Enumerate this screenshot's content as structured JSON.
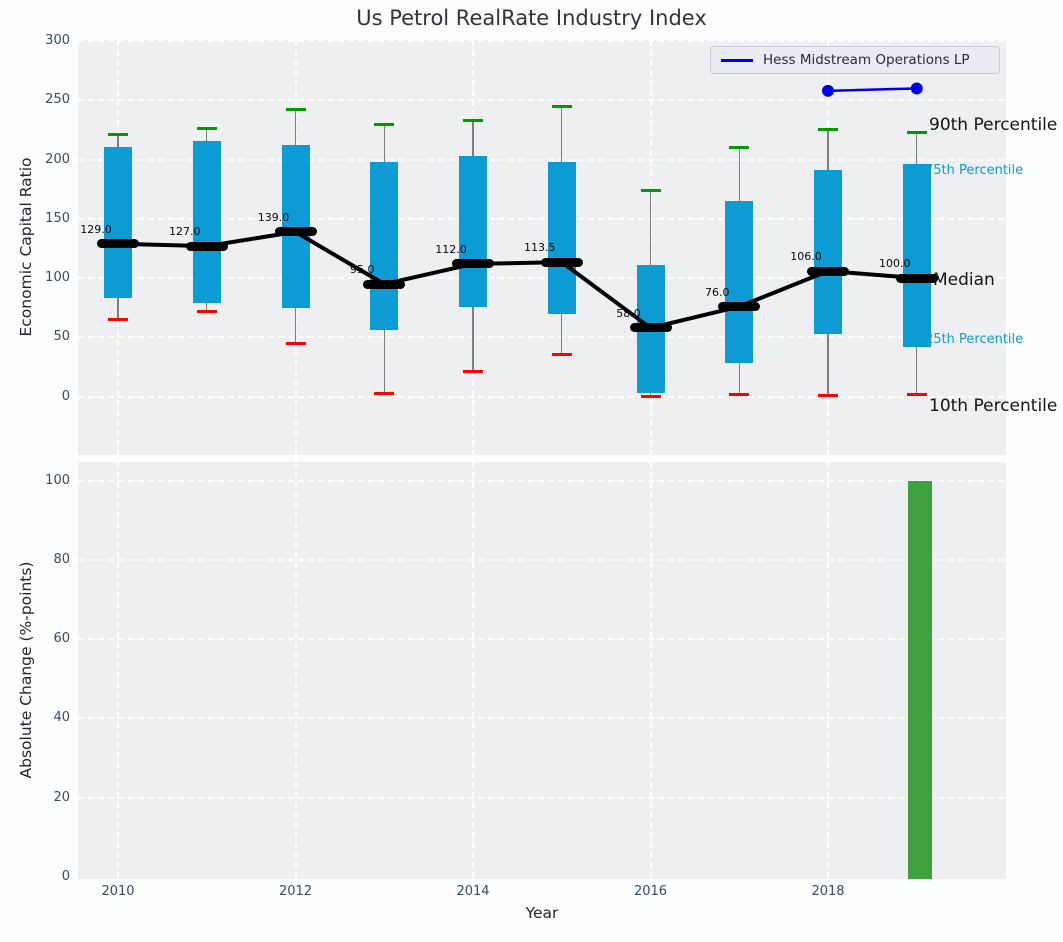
{
  "figure_title": "Us Petrol RealRate Industry Index",
  "chart_data": [
    {
      "type": "boxplot",
      "title": "Us Petrol RealRate Industry Index",
      "ylabel": "Economic Capital Ratio",
      "ylim": [
        -50,
        301
      ],
      "yticks": [
        0,
        50,
        100,
        150,
        200,
        250,
        300
      ],
      "grid_years": [
        2010,
        2012,
        2014,
        2016,
        2018
      ],
      "legend": {
        "label": "Hess Midstream Operations LP"
      },
      "annotations": {
        "p90": "90th Percentile",
        "p75": "75th Percentile",
        "median": "Median",
        "p25": "25th Percentile",
        "p10": "10th Percentile"
      },
      "colors": {
        "box": "#0d9bd3",
        "cap_high": "#009a00",
        "cap_low": "#ff0000",
        "median": "#000000",
        "whisker": "#7e7e7e",
        "company_line": "#0000ee"
      },
      "boxes": [
        {
          "year": 2010,
          "p10": 65,
          "p25": 83,
          "median": 129.0,
          "p75": 211,
          "p90": 221,
          "label": "129.0"
        },
        {
          "year": 2011,
          "p10": 72,
          "p25": 79,
          "median": 127.0,
          "p75": 216,
          "p90": 226,
          "label": "127.0"
        },
        {
          "year": 2012,
          "p10": 45,
          "p25": 75,
          "median": 139.0,
          "p75": 212,
          "p90": 242,
          "label": "139.0"
        },
        {
          "year": 2013,
          "p10": 3,
          "p25": 56,
          "median": 95.0,
          "p75": 198,
          "p90": 230,
          "label": "95.0"
        },
        {
          "year": 2014,
          "p10": 21,
          "p25": 76,
          "median": 112.0,
          "p75": 203,
          "p90": 233,
          "label": "112.0"
        },
        {
          "year": 2015,
          "p10": 36,
          "p25": 70,
          "median": 113.5,
          "p75": 198,
          "p90": 245,
          "label": "113.5"
        },
        {
          "year": 2016,
          "p10": 0,
          "p25": 3,
          "median": 58.0,
          "p75": 111,
          "p90": 174,
          "label": "58.0"
        },
        {
          "year": 2017,
          "p10": 2,
          "p25": 28,
          "median": 76.0,
          "p75": 165,
          "p90": 210,
          "label": "76.0"
        },
        {
          "year": 2018,
          "p10": 1,
          "p25": 53,
          "median": 106.0,
          "p75": 191,
          "p90": 225,
          "label": "106.0"
        },
        {
          "year": 2019,
          "p10": 2,
          "p25": 42,
          "median": 100.0,
          "p75": 196,
          "p90": 223,
          "label": "100.0"
        }
      ],
      "company_series": {
        "name": "Hess Midstream Operations LP",
        "x": [
          2018,
          2019
        ],
        "y": [
          258,
          260
        ]
      }
    },
    {
      "type": "bar",
      "ylabel": "Absolute Change (%-points)",
      "xlabel": "Year",
      "ylim": [
        0,
        105
      ],
      "yticks": [
        0,
        20,
        40,
        60,
        80,
        100
      ],
      "xticks": [
        2010,
        2012,
        2014,
        2016,
        2018
      ],
      "bar_color": "#3fa23f",
      "bars": [
        {
          "year": 2019,
          "value": 100
        }
      ]
    }
  ]
}
